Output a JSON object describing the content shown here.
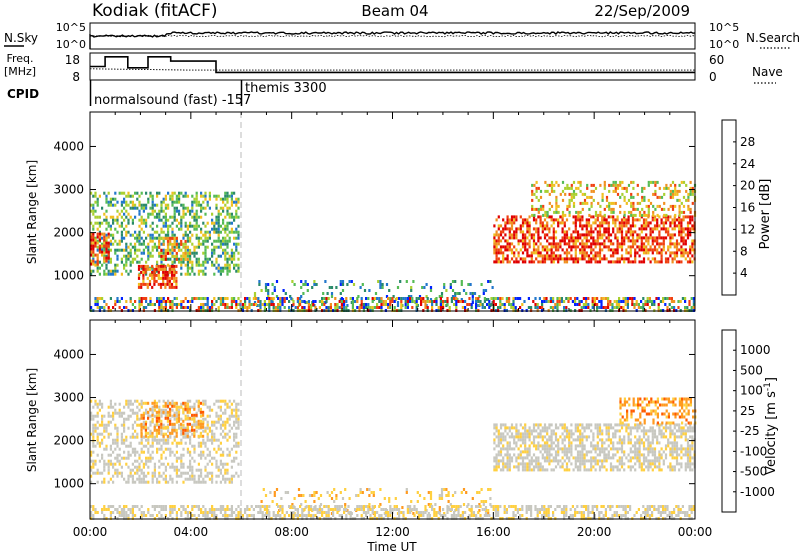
{
  "header": {
    "station": "Kodiak (fitACF)",
    "beam": "Beam 04",
    "date": "22/Sep/2009"
  },
  "colors": {
    "power_scale": [
      "#0022ff",
      "#2277cc",
      "#2a8a6a",
      "#55bb55",
      "#aad030",
      "#f0c020",
      "#f09020",
      "#f04010",
      "#e00000"
    ],
    "velocity_scale": [
      "#ff0000",
      "#ff5a00",
      "#ff9a20",
      "#ffd040",
      "#c8c8c0",
      "#c8c8c0",
      "#9be060",
      "#55bb33",
      "#2a8a6a",
      "#2255cc",
      "#1133aa"
    ]
  },
  "chart_data": [
    {
      "type": "line",
      "panel": "noise",
      "ylabel_left": "N.Sky",
      "ylabel_right": "N.Search",
      "left_ticks": [
        "10^5",
        "10^0"
      ],
      "right_ticks": [
        "10^5",
        "10^0"
      ],
      "series": [
        {
          "name": "N.Sky"
        },
        {
          "name": "N.Search"
        }
      ]
    },
    {
      "type": "line",
      "panel": "frequency",
      "ylabel_left": "Freq.",
      "ylabel_left2": "[MHz]",
      "ylabel_right": "Nave",
      "left_ticks": [
        "18",
        "8"
      ],
      "right_ticks": [
        "60",
        "0"
      ],
      "ylim_left": [
        8,
        18
      ],
      "ylim_right": [
        0,
        60
      ],
      "series": [
        {
          "name": "Freq.",
          "x": [
            0.0,
            0.6,
            0.6,
            1.5,
            1.5,
            2.3,
            2.3,
            3.2,
            3.2,
            5.0,
            5.0,
            24.0
          ],
          "values": [
            13.0,
            13.0,
            16.6,
            16.6,
            12.5,
            12.5,
            16.6,
            16.6,
            15.0,
            15.0,
            10.8,
            10.8
          ]
        },
        {
          "name": "Nave",
          "x": [
            0,
            4,
            8,
            12,
            16,
            20,
            24
          ],
          "values": [
            25,
            22,
            22,
            22,
            22,
            22,
            22
          ]
        }
      ]
    },
    {
      "type": "table",
      "panel": "cpid",
      "label": "CPID",
      "entries": [
        {
          "text": "normalsound (fast) -157",
          "start": 0.0
        },
        {
          "text": "themis 3300",
          "start": 6.0
        }
      ]
    },
    {
      "type": "heatmap",
      "panel": "power",
      "ylabel": "Slant Range [km]",
      "xlabel": "",
      "y_ticks": [
        1000,
        2000,
        3000,
        4000
      ],
      "ylim": [
        180,
        4800
      ],
      "xlim": [
        0,
        24
      ],
      "colorbar_label": "Power [dB]",
      "colorbar_ticks": [
        4,
        8,
        12,
        16,
        20,
        24,
        28
      ],
      "scatter_regions": [
        {
          "t0": 0.0,
          "t1": 5.9,
          "r0": 1050,
          "r1": 2950,
          "density": 0.45,
          "level": 3
        },
        {
          "t0": 1.9,
          "t1": 3.4,
          "r0": 700,
          "r1": 1250,
          "density": 0.7,
          "level": 7
        },
        {
          "t0": 0.0,
          "t1": 0.7,
          "r0": 1300,
          "r1": 2000,
          "density": 0.6,
          "level": 7
        },
        {
          "t0": 2.7,
          "t1": 4.0,
          "r0": 1400,
          "r1": 1900,
          "density": 0.5,
          "level": 6
        },
        {
          "t0": 6.5,
          "t1": 16.0,
          "r0": 300,
          "r1": 900,
          "density": 0.18,
          "level": 2
        },
        {
          "t0": 16.0,
          "t1": 24.0,
          "r0": 1300,
          "r1": 2400,
          "density": 0.6,
          "level": 7
        },
        {
          "t0": 17.5,
          "t1": 24.0,
          "r0": 2400,
          "r1": 3200,
          "density": 0.35,
          "level": 5
        }
      ]
    },
    {
      "type": "heatmap",
      "panel": "velocity",
      "ylabel": "Slant Range [km]",
      "xlabel": "Time UT",
      "x_ticks": [
        "00:00",
        "04:00",
        "08:00",
        "12:00",
        "16:00",
        "20:00",
        "00:00"
      ],
      "y_ticks": [
        1000,
        2000,
        3000,
        4000
      ],
      "ylim": [
        180,
        4800
      ],
      "xlim": [
        0,
        24
      ],
      "colorbar_label": "Velocity [m s",
      "colorbar_label_exp": "-1",
      "colorbar_label_close": "]",
      "colorbar_ticks": [
        "-1000",
        "-500",
        "-100",
        "-25",
        "25",
        "100",
        "500",
        "1000"
      ],
      "scatter_regions": [
        {
          "t0": 0.0,
          "t1": 5.9,
          "r0": 1050,
          "r1": 2950,
          "density": 0.45,
          "level": 4
        },
        {
          "t0": 2.0,
          "t1": 4.5,
          "r0": 2100,
          "r1": 2900,
          "density": 0.4,
          "level": 2
        },
        {
          "t0": 6.5,
          "t1": 16.0,
          "r0": 300,
          "r1": 900,
          "density": 0.15,
          "level": 3
        },
        {
          "t0": 16.0,
          "t1": 24.0,
          "r0": 1300,
          "r1": 2400,
          "density": 0.6,
          "level": 4
        },
        {
          "t0": 21.0,
          "t1": 24.0,
          "r0": 2400,
          "r1": 3000,
          "density": 0.4,
          "level": 2
        }
      ]
    }
  ]
}
